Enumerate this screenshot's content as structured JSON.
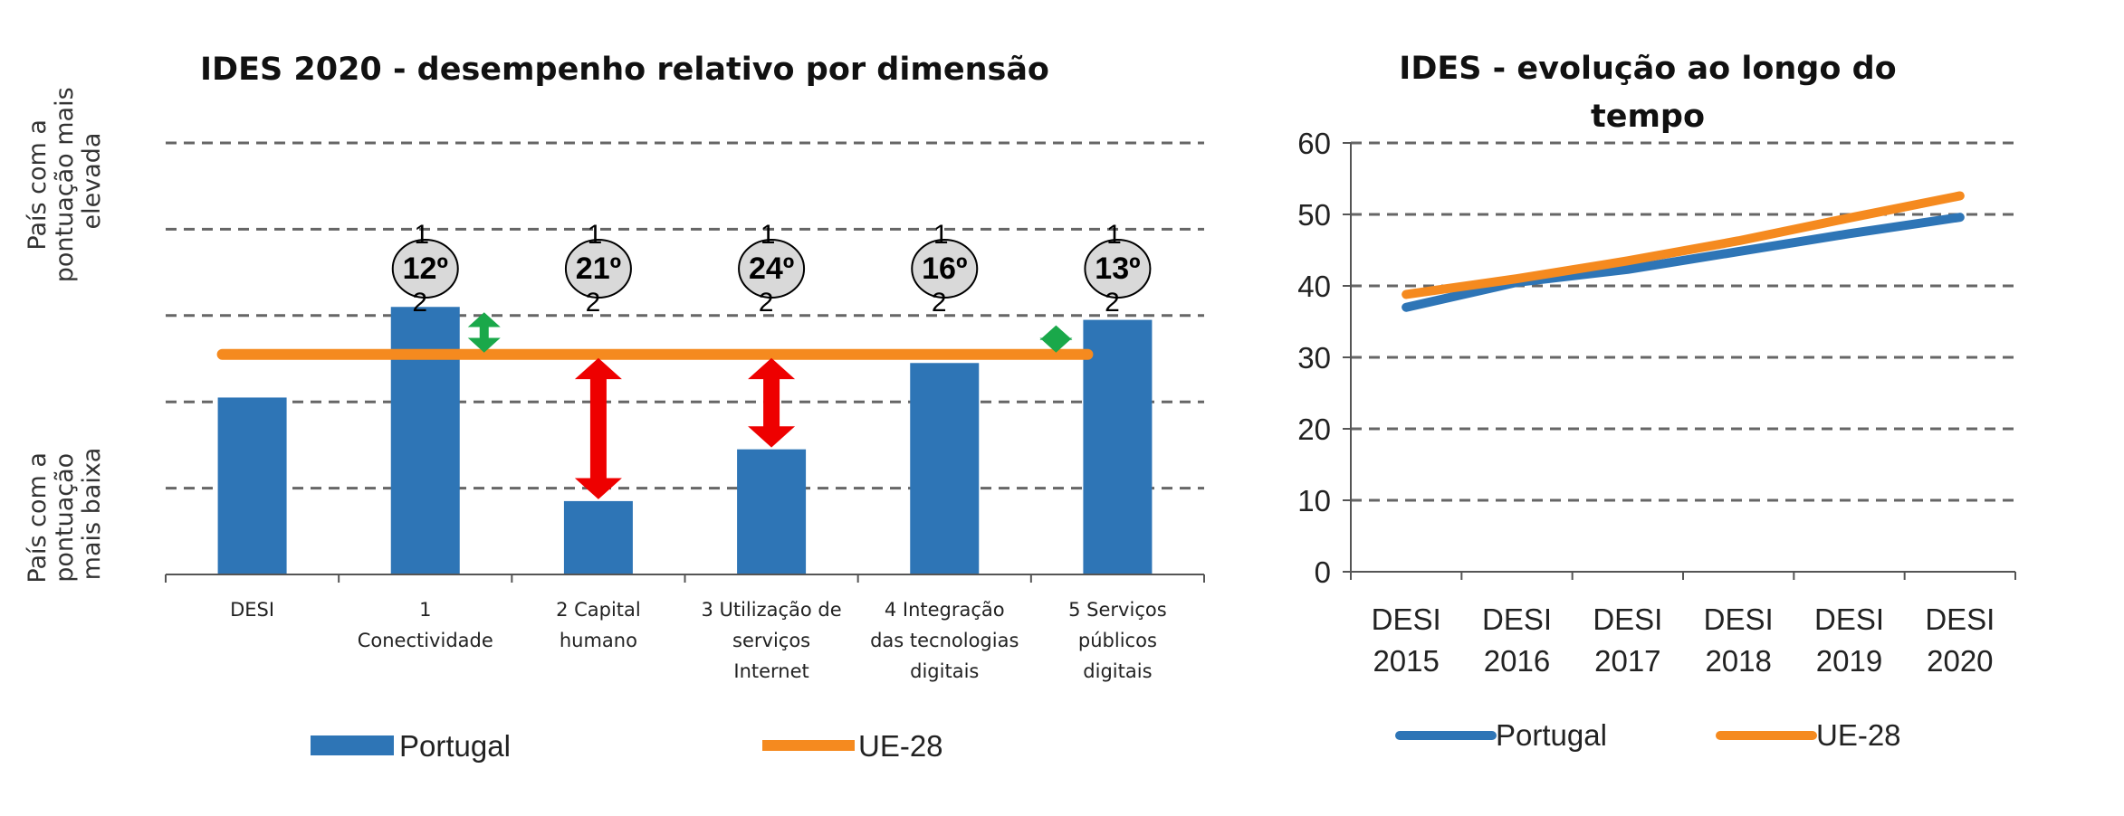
{
  "colors": {
    "portugal": "#2e75b6",
    "eu": "#f58a1f",
    "red_arrow": "#ee0000",
    "green_arrow": "#1aa84a",
    "grid": "#666666",
    "badge": "#d9d9d9"
  },
  "chart_data": [
    {
      "type": "bar",
      "title": "IDES 2020 - desempenho relativo por dimensão",
      "ylabel_top": "País com a pontuação mais elevada",
      "ylabel_bottom": "País com a pontuação mais baixa",
      "categories": [
        "DESI",
        "1 Conectividade",
        "2 Capital humano",
        "3 Utilização de serviços Internet",
        "4 Integração das tecnologias digitais",
        "5 Serviços públicos digitais"
      ],
      "category_lines": [
        [
          "DESI"
        ],
        [
          "1",
          "Conectividade"
        ],
        [
          "2 Capital",
          "humano"
        ],
        [
          "3 Utilização de",
          "serviços",
          "Internet"
        ],
        [
          "4 Integração",
          "das tecnologias",
          "digitais"
        ],
        [
          "5 Serviços",
          "públicos",
          "digitais"
        ]
      ],
      "ylim": [
        0,
        5
      ],
      "gridlines": [
        1,
        2,
        3,
        4,
        5
      ],
      "grid": true,
      "series": [
        {
          "name": "Portugal",
          "values": [
            2.05,
            3.1,
            0.85,
            1.45,
            2.45,
            2.95
          ]
        },
        {
          "name": "UE-28",
          "type": "line",
          "value": 2.55
        }
      ],
      "ranks": [
        {
          "category": "1 Conectividade",
          "rank": "12º"
        },
        {
          "category": "2 Capital humano",
          "rank": "21º"
        },
        {
          "category": "3 Utilização de serviços Internet",
          "rank": "24º"
        },
        {
          "category": "4 Integração das tecnologias digitais",
          "rank": "16º"
        },
        {
          "category": "5 Serviços públicos digitais",
          "rank": "13º"
        }
      ],
      "rank_marks": [
        "1",
        "2"
      ],
      "legend": [
        "Portugal",
        "UE-28"
      ],
      "legend_position": "bottom"
    },
    {
      "type": "line",
      "title_lines": [
        "IDES - evolução ao longo do",
        "tempo"
      ],
      "categories": [
        "DESI 2015",
        "DESI 2016",
        "DESI 2017",
        "DESI 2018",
        "DESI 2019",
        "DESI 2020"
      ],
      "category_lines": [
        [
          "DESI",
          "2015"
        ],
        [
          "DESI",
          "2016"
        ],
        [
          "DESI",
          "2017"
        ],
        [
          "DESI",
          "2018"
        ],
        [
          "DESI",
          "2019"
        ],
        [
          "DESI",
          "2020"
        ]
      ],
      "ylim": [
        0,
        60
      ],
      "yticks": [
        "0",
        "10",
        "20",
        "30",
        "40",
        "50",
        "60"
      ],
      "grid": true,
      "series": [
        {
          "name": "Portugal",
          "values": [
            37,
            40.5,
            42.3,
            44.8,
            47.3,
            49.6
          ]
        },
        {
          "name": "UE-28",
          "values": [
            38.8,
            41,
            43.5,
            46.3,
            49.5,
            52.6
          ]
        }
      ],
      "legend": [
        "Portugal",
        "UE-28"
      ],
      "legend_position": "bottom"
    }
  ]
}
